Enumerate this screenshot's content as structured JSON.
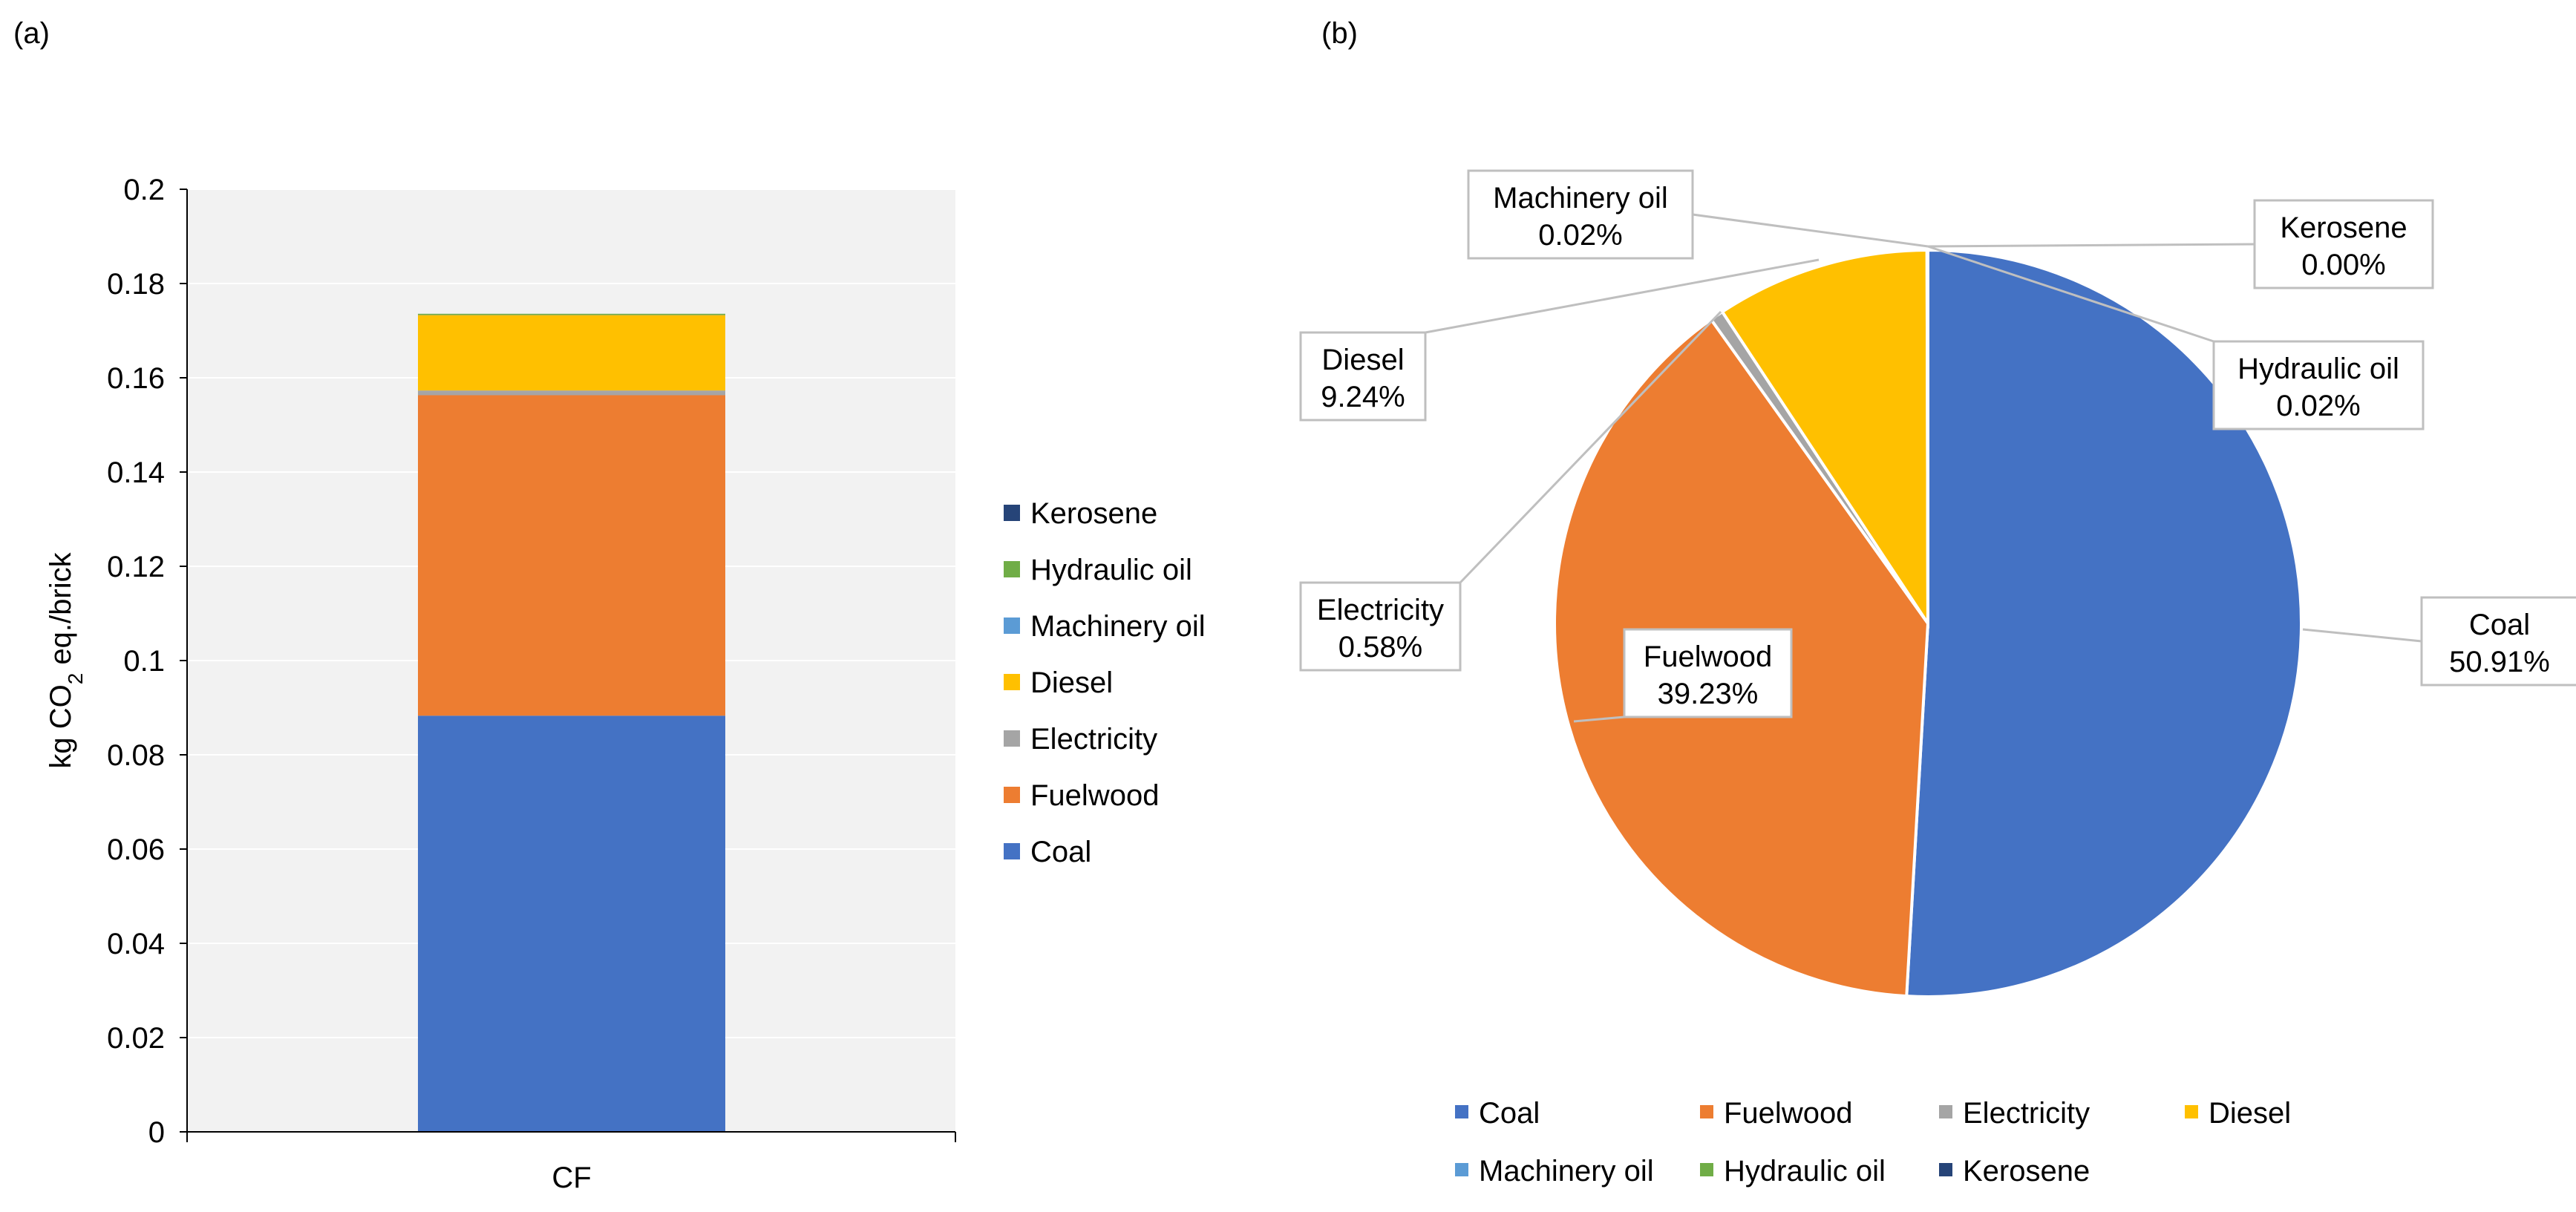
{
  "panel_labels": {
    "a": "(a)",
    "b": "(b)"
  },
  "colors": {
    "Coal": "#4472C4",
    "Fuelwood": "#ED7D31",
    "Electricity": "#A5A5A5",
    "Diesel": "#FFC000",
    "Machinery oil": "#5B9BD5",
    "Hydraulic oil": "#70AD47",
    "Kerosene": "#264478",
    "plot_bg": "#F2F2F2",
    "grid": "#FFFFFF",
    "axis": "#000000",
    "leader": "#BFBFBF"
  },
  "chart_data": [
    {
      "type": "bar",
      "stacked": true,
      "title": "",
      "xlabel": "",
      "ylabel": {
        "pre": "kg CO",
        "sub": "2",
        "post": " eq./brick"
      },
      "categories": [
        "CF"
      ],
      "ylim": [
        0,
        0.2
      ],
      "yticks": [
        {
          "value": 0,
          "label": "0"
        },
        {
          "value": 0.02,
          "label": "0.02"
        },
        {
          "value": 0.04,
          "label": "0.04"
        },
        {
          "value": 0.06,
          "label": "0.06"
        },
        {
          "value": 0.08,
          "label": "0.08"
        },
        {
          "value": 0.1,
          "label": "0.1"
        },
        {
          "value": 0.12,
          "label": "0.12"
        },
        {
          "value": 0.14,
          "label": "0.14"
        },
        {
          "value": 0.16,
          "label": "0.16"
        },
        {
          "value": 0.18,
          "label": "0.18"
        },
        {
          "value": 0.2,
          "label": "0.2"
        }
      ],
      "grid": true,
      "series": [
        {
          "name": "Coal",
          "values": [
            0.0883
          ]
        },
        {
          "name": "Fuelwood",
          "values": [
            0.068
          ]
        },
        {
          "name": "Electricity",
          "values": [
            0.001
          ]
        },
        {
          "name": "Diesel",
          "values": [
            0.016
          ]
        },
        {
          "name": "Machinery oil",
          "values": [
            4e-05
          ]
        },
        {
          "name": "Hydraulic oil",
          "values": [
            4e-05
          ]
        },
        {
          "name": "Kerosene",
          "values": [
            0.0
          ]
        }
      ],
      "legend": {
        "position": "right",
        "order": [
          "Kerosene",
          "Hydraulic oil",
          "Machinery oil",
          "Diesel",
          "Electricity",
          "Fuelwood",
          "Coal"
        ]
      }
    },
    {
      "type": "pie",
      "title": "",
      "slices": [
        {
          "name": "Coal",
          "value": 50.91,
          "label": "50.91%"
        },
        {
          "name": "Fuelwood",
          "value": 39.23,
          "label": "39.23%"
        },
        {
          "name": "Electricity",
          "value": 0.58,
          "label": "0.58%"
        },
        {
          "name": "Diesel",
          "value": 9.24,
          "label": "9.24%"
        },
        {
          "name": "Machinery oil",
          "value": 0.02,
          "label": "0.02%"
        },
        {
          "name": "Hydraulic oil",
          "value": 0.02,
          "label": "0.02%"
        },
        {
          "name": "Kerosene",
          "value": 0.0,
          "label": "0.00%"
        }
      ],
      "legend": {
        "position": "bottom",
        "row1": [
          "Coal",
          "Fuelwood",
          "Electricity",
          "Diesel"
        ],
        "row2": [
          "Machinery oil",
          "Hydraulic oil",
          "Kerosene"
        ]
      }
    }
  ]
}
